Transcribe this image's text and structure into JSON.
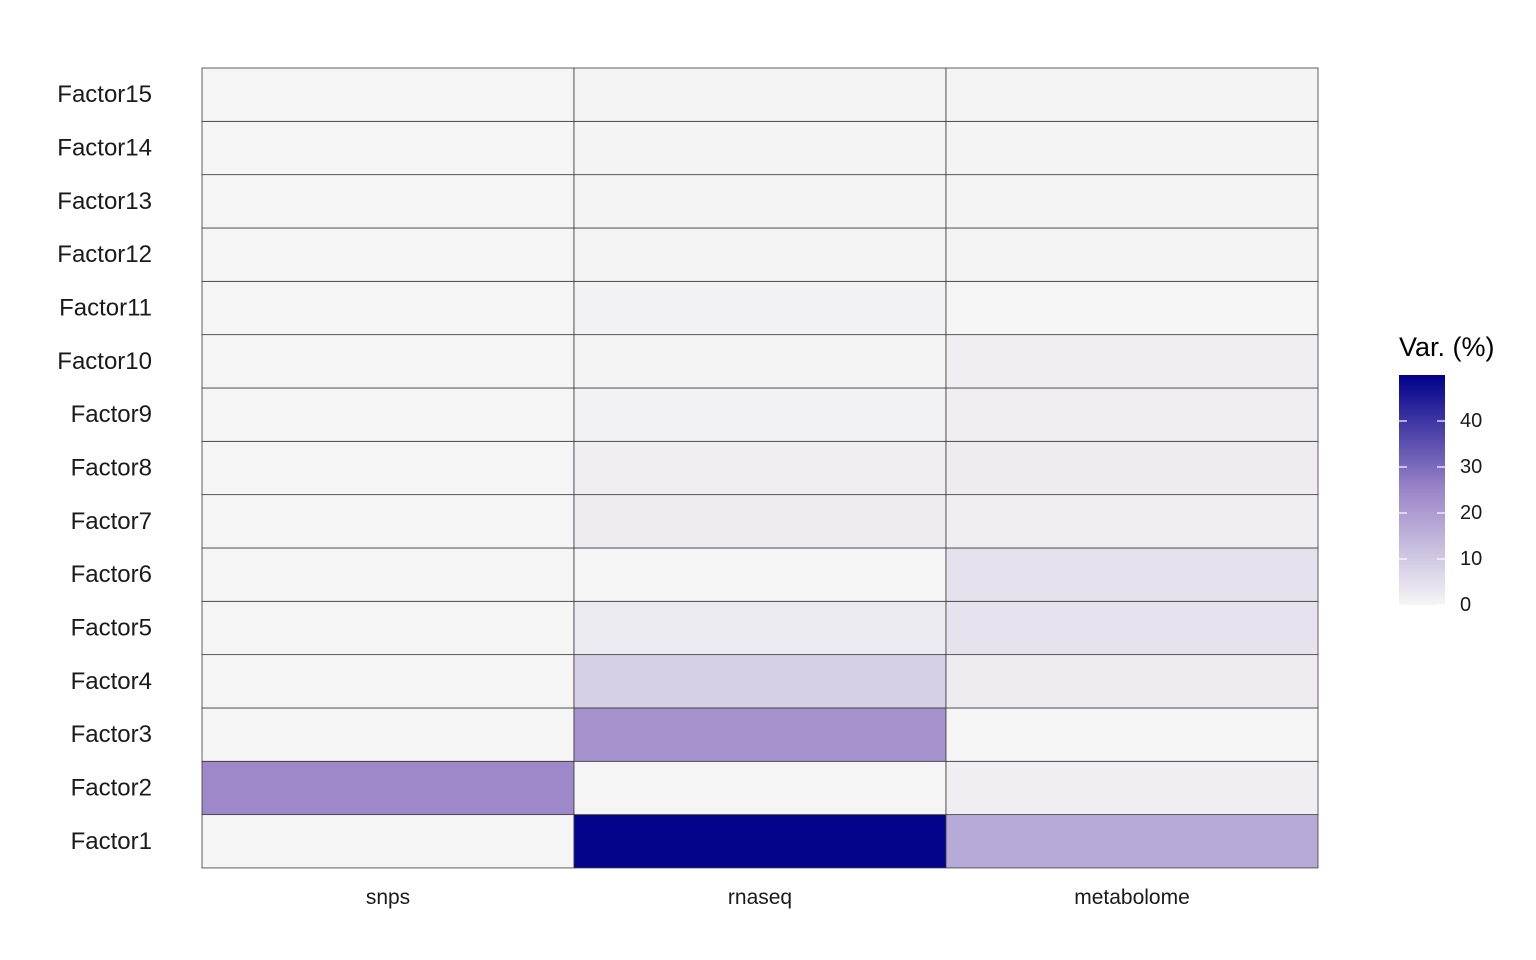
{
  "chart_data": {
    "type": "heatmap",
    "title": "",
    "xlabel": "",
    "ylabel": "",
    "x_categories": [
      "snps",
      "rnaseq",
      "metabolome"
    ],
    "y_categories": [
      "Factor1",
      "Factor2",
      "Factor3",
      "Factor4",
      "Factor5",
      "Factor6",
      "Factor7",
      "Factor8",
      "Factor9",
      "Factor10",
      "Factor11",
      "Factor12",
      "Factor13",
      "Factor14",
      "Factor15"
    ],
    "values": [
      [
        0.0,
        49.5,
        17.0
      ],
      [
        24.5,
        0.0,
        1.5
      ],
      [
        0.0,
        22.0,
        0.0
      ],
      [
        0.0,
        8.5,
        2.0
      ],
      [
        0.0,
        2.5,
        4.0
      ],
      [
        0.0,
        0.0,
        4.5
      ],
      [
        0.0,
        2.0,
        1.5
      ],
      [
        0.0,
        1.5,
        2.0
      ],
      [
        0.0,
        0.8,
        1.5
      ],
      [
        0.0,
        0.3,
        1.5
      ],
      [
        0.0,
        0.8,
        0.0
      ],
      [
        0.0,
        0.3,
        0.3
      ],
      [
        0.0,
        0.3,
        0.3
      ],
      [
        0.0,
        0.3,
        0.3
      ],
      [
        0.0,
        0.3,
        0.3
      ]
    ],
    "color_scale": {
      "min": 0,
      "max": 50,
      "low": "#f5f5f5",
      "mid": "#9b86c8",
      "high": "#00008b"
    },
    "legend": {
      "title": "Var. (%)",
      "ticks": [
        0,
        10,
        20,
        30,
        40
      ],
      "placement": "right"
    }
  }
}
